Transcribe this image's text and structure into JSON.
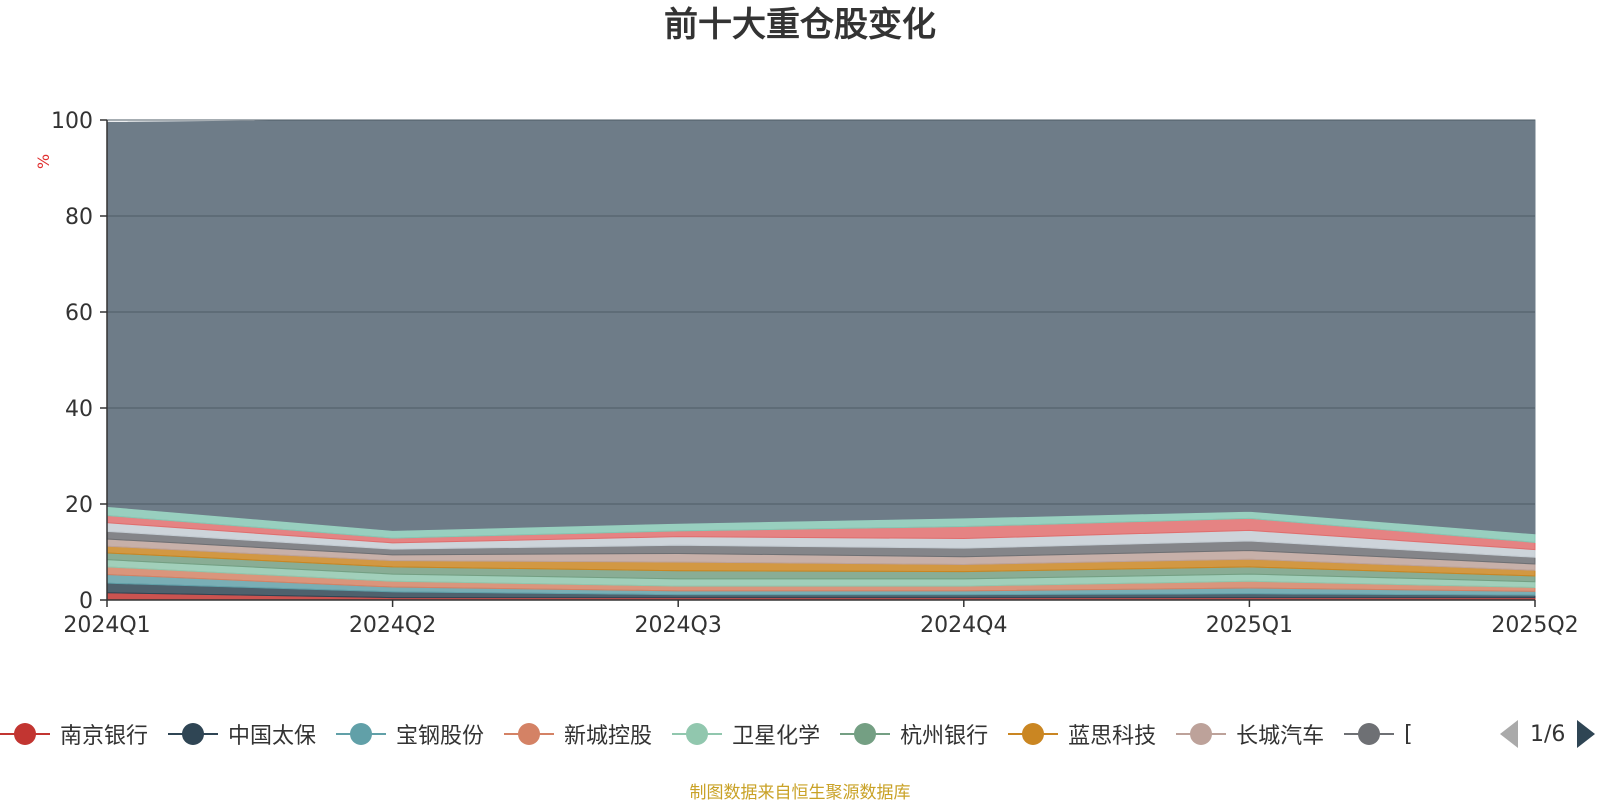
{
  "chart_data": {
    "type": "area",
    "title": "前十大重仓股变化",
    "ylabel": "%",
    "ylim": [
      0,
      100
    ],
    "yticks": [
      0,
      20,
      40,
      60,
      80,
      100
    ],
    "categories": [
      "2024Q1",
      "2024Q2",
      "2024Q3",
      "2024Q4",
      "2025Q1",
      "2025Q2"
    ],
    "series": [
      {
        "name": "南京银行",
        "color": "#c23531",
        "values": [
          1.5,
          0.5,
          0.5,
          0.5,
          0.5,
          0.5
        ]
      },
      {
        "name": "中国太保",
        "color": "#2f4554",
        "values": [
          2.0,
          1.2,
          0.6,
          0.6,
          0.8,
          0.5
        ]
      },
      {
        "name": "宝钢股份",
        "color": "#61a0a8",
        "values": [
          1.8,
          1.0,
          0.8,
          0.8,
          1.2,
          0.8
        ]
      },
      {
        "name": "新城控股",
        "color": "#d48265",
        "values": [
          1.6,
          1.2,
          1.0,
          1.0,
          1.4,
          0.8
        ]
      },
      {
        "name": "卫星化学",
        "color": "#91c7ae",
        "values": [
          1.5,
          1.5,
          1.5,
          1.5,
          1.5,
          1.2
        ]
      },
      {
        "name": "杭州银行",
        "color": "#749f83",
        "values": [
          1.4,
          1.5,
          1.7,
          1.5,
          1.5,
          1.2
        ]
      },
      {
        "name": "蓝思科技",
        "color": "#ca8622",
        "values": [
          1.4,
          1.3,
          1.8,
          1.5,
          1.6,
          1.2
        ]
      },
      {
        "name": "长城汽车",
        "color": "#bda29a",
        "values": [
          1.5,
          1.2,
          1.8,
          1.6,
          1.8,
          1.3
        ]
      },
      {
        "name": "",
        "color": "#6e7074",
        "values": [
          1.6,
          1.2,
          1.7,
          1.8,
          2.0,
          1.4
        ]
      },
      {
        "name": "",
        "color": "#c4ccd3",
        "values": [
          1.8,
          1.3,
          1.8,
          2.0,
          2.2,
          1.6
        ]
      },
      {
        "name": "",
        "color": "#e06d6d",
        "values": [
          1.5,
          1.0,
          1.2,
          2.5,
          2.5,
          1.5
        ]
      },
      {
        "name": "",
        "color": "#86c7b4",
        "values": [
          1.9,
          1.6,
          1.6,
          1.8,
          1.5,
          1.8
        ]
      },
      {
        "name": "",
        "color": "#6e7c88",
        "values": [
          80.0,
          86.5,
          84.0,
          83.0,
          81.5,
          86.2
        ]
      }
    ]
  },
  "legend": {
    "items": [
      {
        "label": "南京银行",
        "color": "#c23531"
      },
      {
        "label": "中国太保",
        "color": "#2f4554"
      },
      {
        "label": "宝钢股份",
        "color": "#61a0a8"
      },
      {
        "label": "新城控股",
        "color": "#d48265"
      },
      {
        "label": "卫星化学",
        "color": "#91c7ae"
      },
      {
        "label": "杭州银行",
        "color": "#749f83"
      },
      {
        "label": "蓝思科技",
        "color": "#ca8622"
      },
      {
        "label": "长城汽车",
        "color": "#bda29a"
      },
      {
        "label": "[",
        "color": "#6e7074"
      }
    ],
    "page": "1/6"
  },
  "source": "制图数据来自恒生聚源数据库"
}
